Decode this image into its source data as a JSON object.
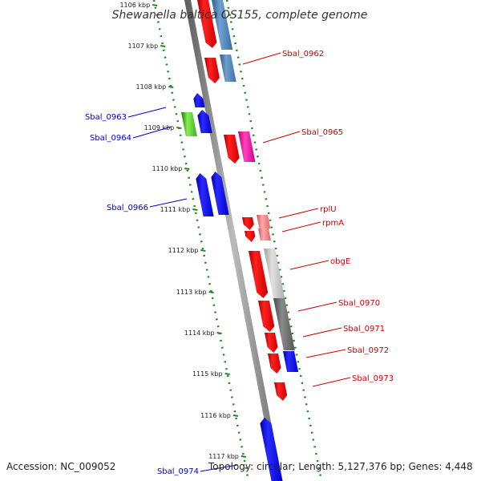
{
  "title": "Shewanella baltica OS155, complete genome",
  "footer": {
    "accession": "Accession: NC_009052",
    "topology": "Topology: circular; Length: 5,127,376 bp; Genes: 4,448"
  },
  "ticks": [
    "1106 kbp",
    "1107 kbp",
    "1108 kbp",
    "1109 kbp",
    "1110 kbp",
    "1111 kbp",
    "1112 kbp",
    "1113 kbp",
    "1114 kbp",
    "1115 kbp",
    "1116 kbp",
    "1117 kbp"
  ],
  "genes_right": [
    "Sbal_0962",
    "Sbal_0965",
    "rplU",
    "rpmA",
    "obgE",
    "Sbal_0970",
    "Sbal_0971",
    "Sbal_0972",
    "Sbal_0973"
  ],
  "genes_left": [
    "Sbal_0963",
    "Sbal_0964",
    "Sbal_0966",
    "Sbal_0974"
  ],
  "colors": {
    "backbone": "#8a8a8a",
    "dotted_track": "#1a8a1a",
    "right_label": "#cc0000",
    "left_label": "#0000cc",
    "red_gene": "#ee0000",
    "blue_gene": "#0000ee",
    "steel_gene": "#4a7fb0",
    "magenta_gene": "#ee1199",
    "pink_gene": "#ee7777",
    "lightgray_gene": "#c0c0c0",
    "darkgray_gene": "#6a6a6a",
    "green_gene": "#44aa22"
  }
}
